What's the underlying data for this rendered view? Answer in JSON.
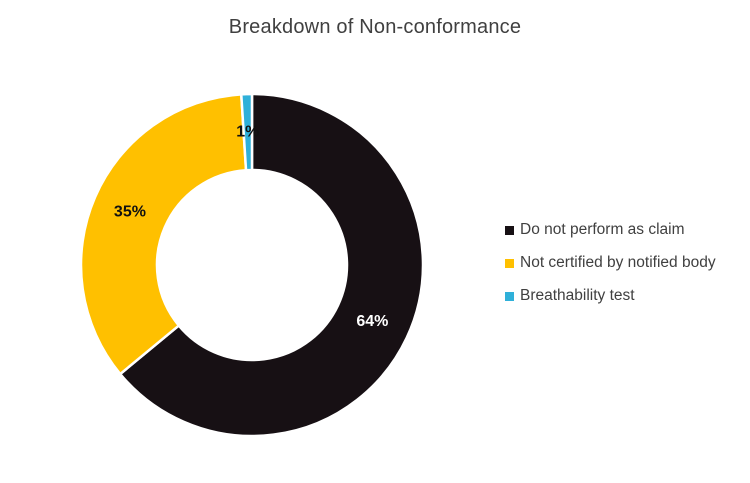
{
  "chart_data": {
    "type": "pie",
    "subtype": "donut",
    "title": "Breakdown of Non-conformance",
    "legend_position": "right",
    "direction": "clockwise",
    "start_angle_deg": 0,
    "hole_ratio": 0.56,
    "background_color": "#FFFFFF",
    "slice_border_color": "#FFFFFF",
    "slices": [
      {
        "label": "Do not perform as claim",
        "value": 64,
        "pct_label": "64%",
        "color": "#171014",
        "pct_label_color": "#FFFFFF"
      },
      {
        "label": "Not certified by notified body",
        "value": 35,
        "pct_label": "35%",
        "color": "#FFC000",
        "pct_label_color": "#111111"
      },
      {
        "label": "Breathability test",
        "value": 1,
        "pct_label": "1%",
        "color": "#2FB0D9",
        "pct_label_color": "#111111"
      }
    ]
  }
}
